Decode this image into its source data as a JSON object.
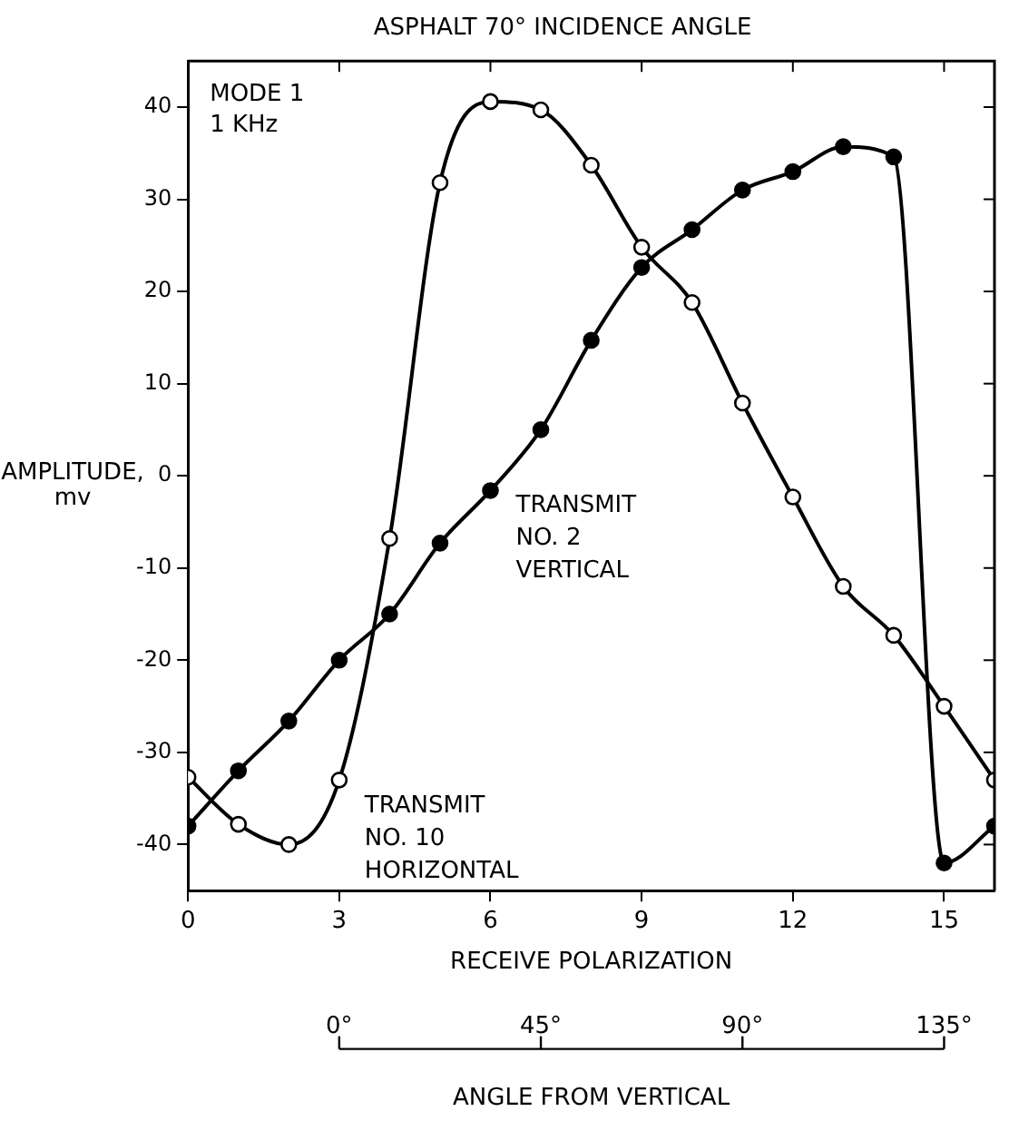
{
  "chart_data": {
    "type": "line",
    "title": "ASPHALT 70° INCIDENCE ANGLE",
    "xlabel": "RECEIVE POLARIZATION",
    "ylabel": "AMPLITUDE,\nmv",
    "x2label": "ANGLE FROM VERTICAL",
    "x": [
      0,
      1,
      2,
      3,
      4,
      5,
      6,
      7,
      8,
      9,
      10,
      11,
      12,
      13,
      14,
      15,
      16
    ],
    "series": [
      {
        "name": "TRANSMIT\nNO. 2\nVERTICAL",
        "color": "#000000",
        "values": [
          -38,
          -32,
          -26.6,
          -20,
          -15,
          -7.3,
          -1.6,
          5,
          14.7,
          22.6,
          26.7,
          31,
          33,
          35.7,
          34.6,
          -42,
          -38
        ]
      },
      {
        "name": "TRANSMIT\nNO. 10\nHORIZONTAL",
        "color": "#000000",
        "values": [
          -32.7,
          -37.8,
          -40,
          -33,
          -6.8,
          31.8,
          40.6,
          39.7,
          33.7,
          24.8,
          18.8,
          7.9,
          -2.3,
          -12,
          -17.3,
          -25,
          -33
        ]
      }
    ],
    "xlim": [
      0,
      16
    ],
    "xticks": [
      0,
      3,
      6,
      9,
      12,
      15
    ],
    "ylim": [
      -45,
      45
    ],
    "yticks": [
      -40,
      -30,
      -20,
      -10,
      0,
      10,
      20,
      30,
      40
    ],
    "x2lim": [
      -33.75,
      146.25
    ],
    "x2ticks": [
      {
        "value": 0,
        "label": "0°"
      },
      {
        "value": 45,
        "label": "45°"
      },
      {
        "value": 90,
        "label": "90°"
      },
      {
        "value": 135,
        "label": "135°"
      }
    ],
    "annotations": [
      "MODE 1\n1 KHz"
    ],
    "grid": false,
    "legend": false,
    "marker": "circle",
    "line_style": "solid"
  }
}
